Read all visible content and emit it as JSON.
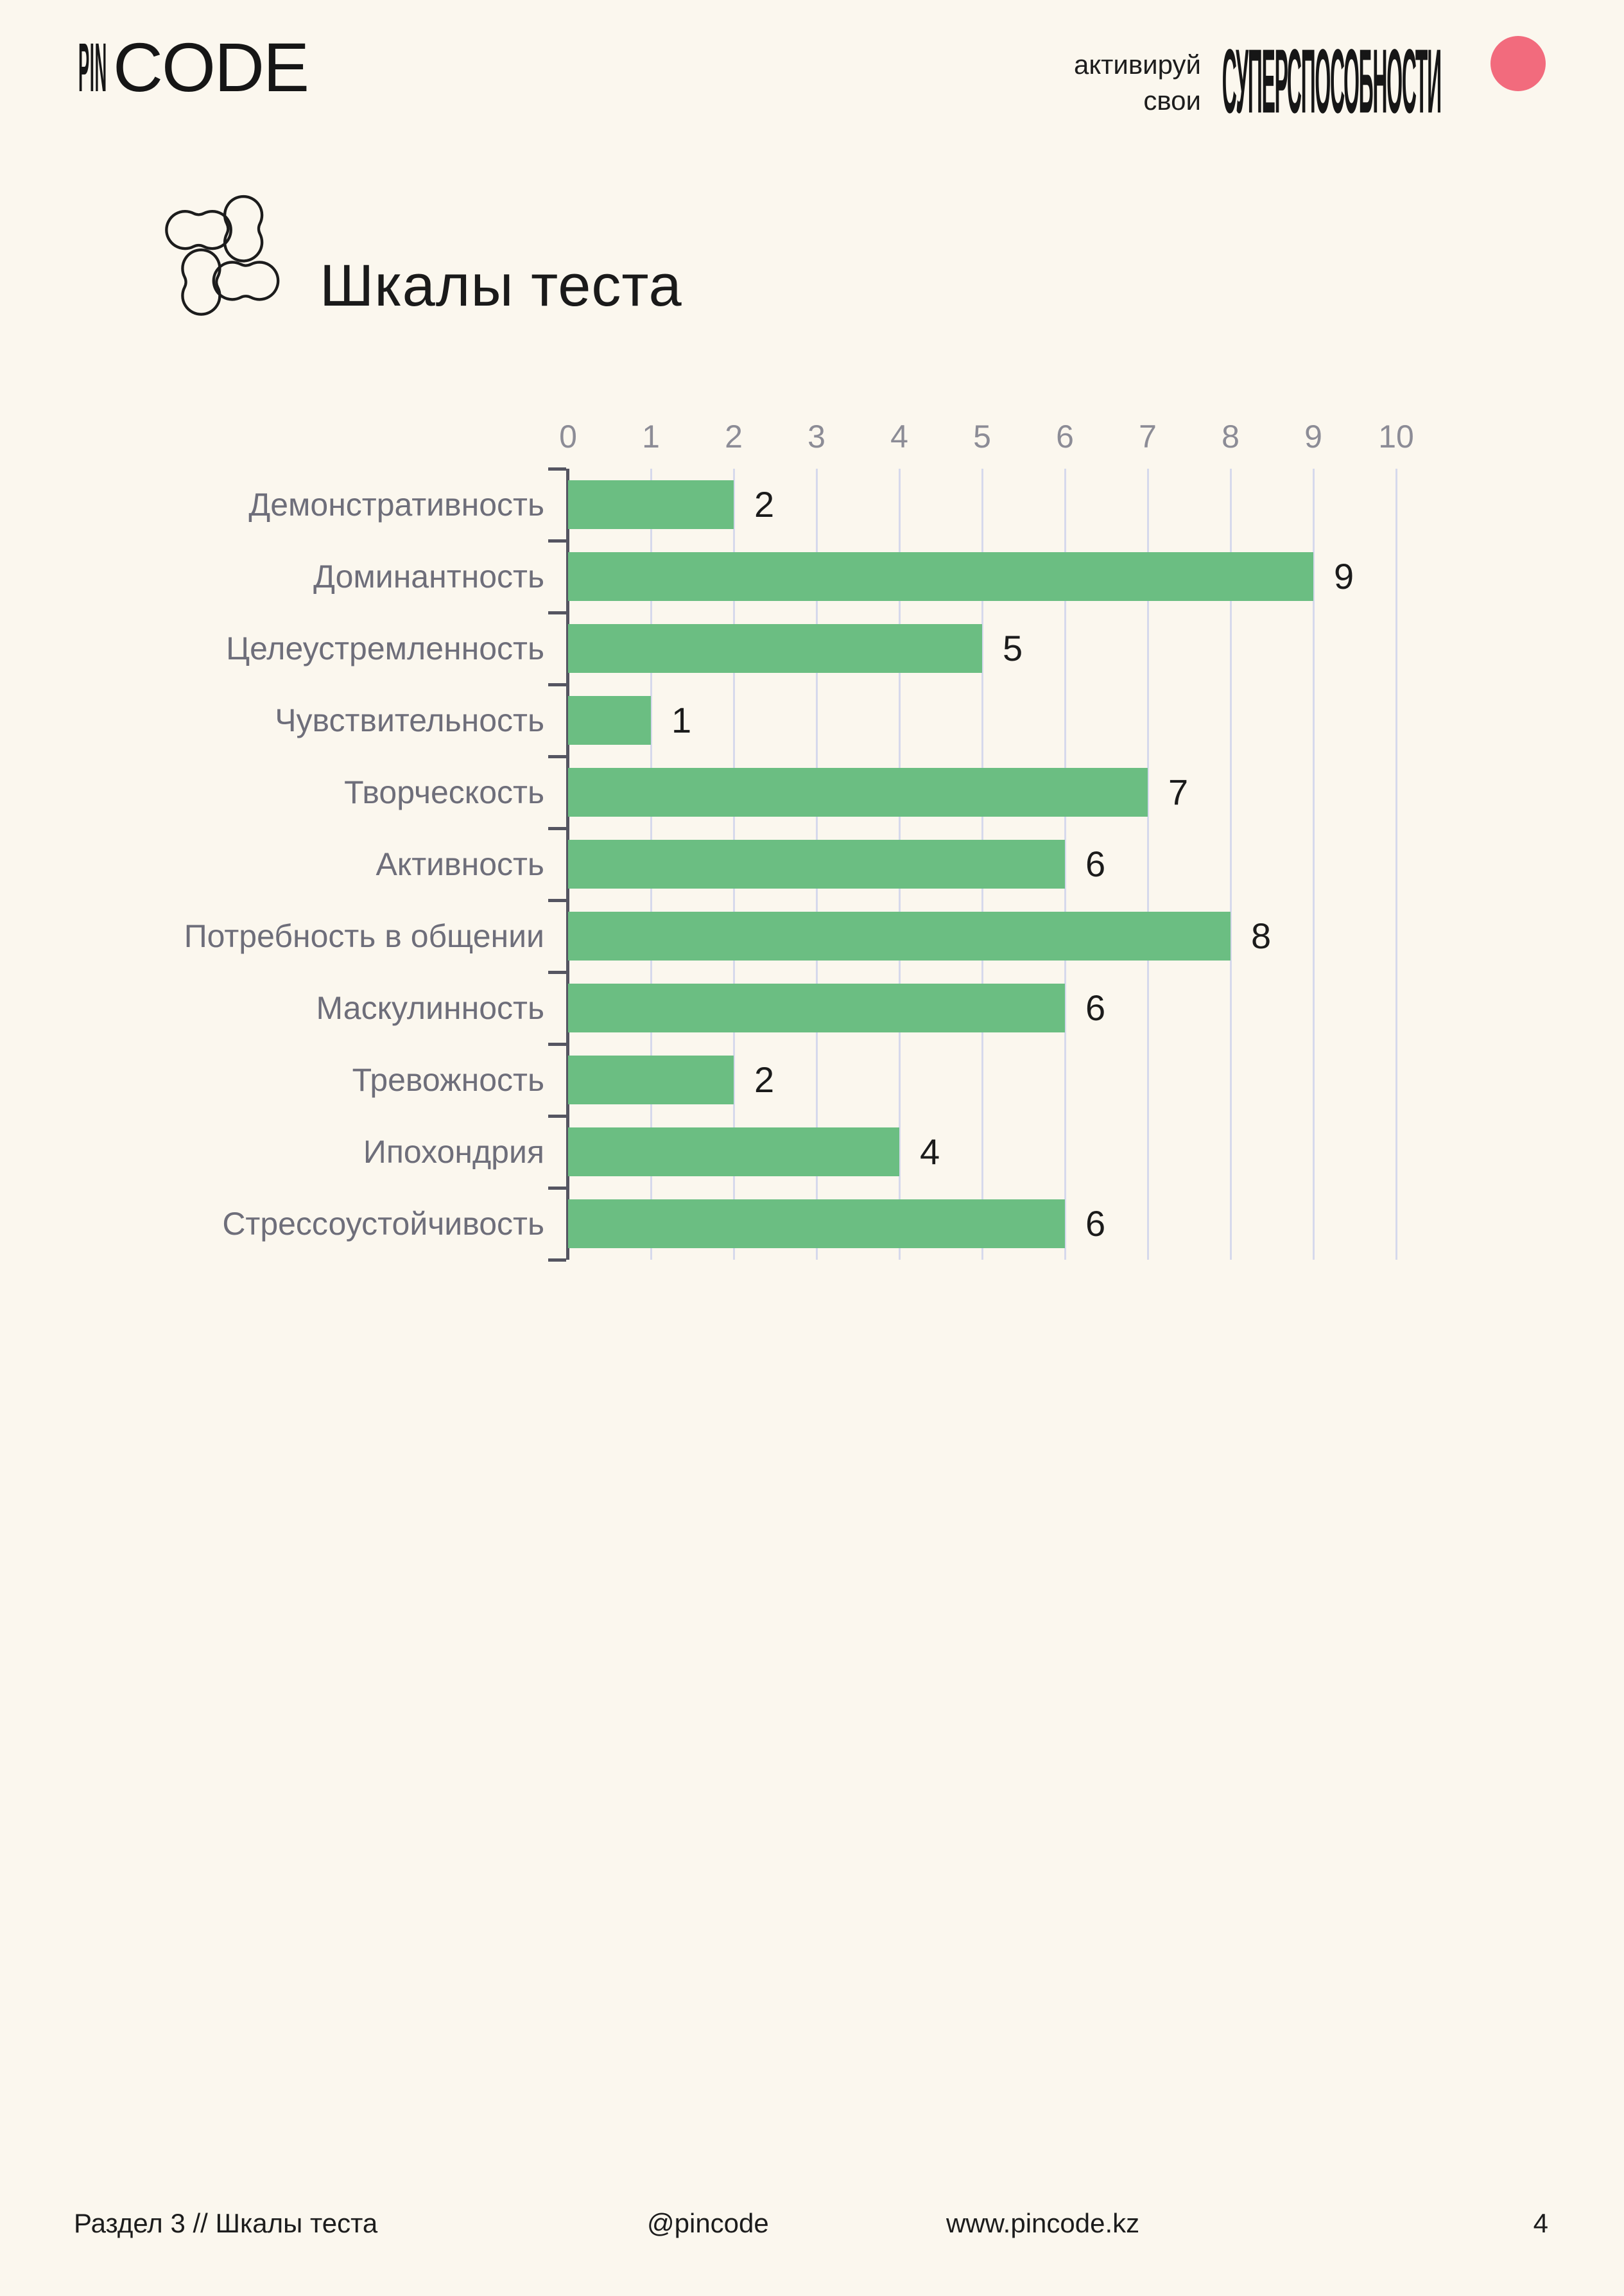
{
  "page": {
    "background": "#FBF7EE"
  },
  "header": {
    "logo": {
      "pin": "PIN",
      "code": "CODE"
    },
    "tagline_line1": "активируй",
    "tagline_line2": "свои",
    "tagline_title": "СУПЕРСПОСОБНОСТИ",
    "accent_circle_color": "#F26B7D"
  },
  "section": {
    "title": "Шкалы теста"
  },
  "chart_data": {
    "type": "bar",
    "orientation": "horizontal",
    "title": "Шкалы теста",
    "categories": [
      "Демонстративность",
      "Доминантность",
      "Целеустремленность",
      "Чувствительность",
      "Творческость",
      "Активность",
      "Потребность в общении",
      "Маскулинность",
      "Тревожность",
      "Ипохондрия",
      "Стрессоустойчивость"
    ],
    "values": [
      2,
      9,
      5,
      1,
      7,
      6,
      8,
      6,
      2,
      4,
      6
    ],
    "xlim": [
      0,
      10
    ],
    "x_ticks": [
      0,
      1,
      2,
      3,
      4,
      5,
      6,
      7,
      8,
      9,
      10
    ],
    "x_tick_side": "top",
    "grid": "vertical",
    "value_labels": true,
    "bar_color": "#6BBE82",
    "grid_color": "#D6D9EC",
    "axis_color": "#555561",
    "tick_label_color": "#8C8C96",
    "category_label_color": "#6E6E7A",
    "value_label_color": "#1B1B1B"
  },
  "footer": {
    "section": "Раздел 3 // Шкалы теста",
    "handle": "@pincode",
    "site": "www.pincode.kz",
    "page_number": "4"
  }
}
